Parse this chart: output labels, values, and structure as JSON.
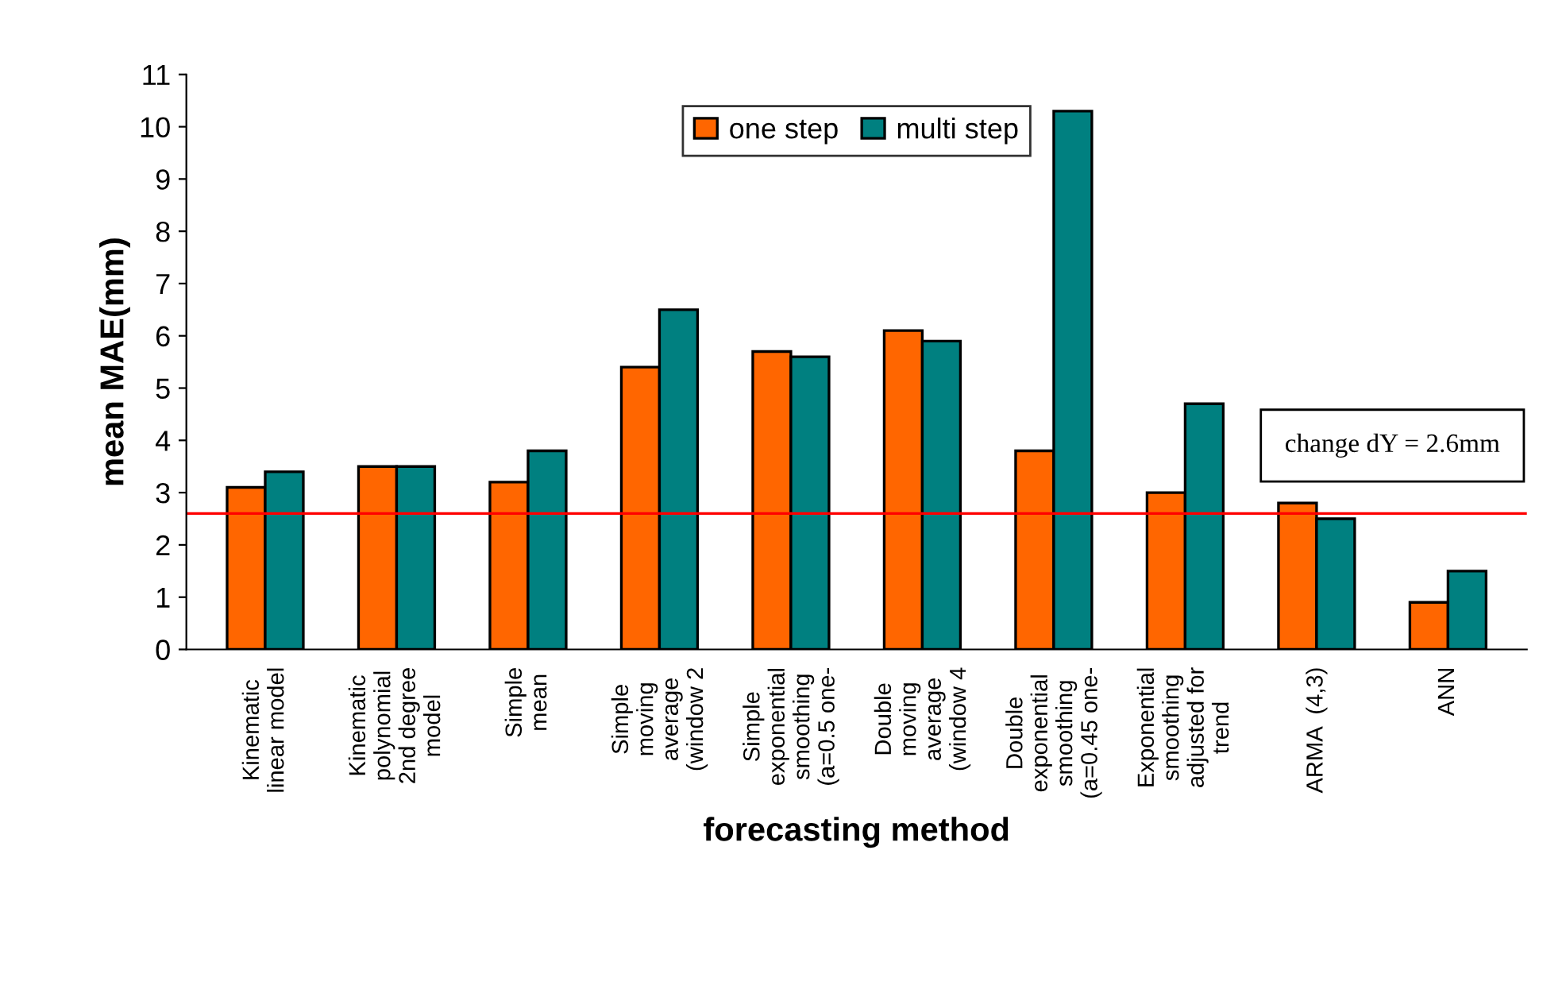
{
  "chart_data": {
    "type": "bar",
    "xlabel": "forecasting method",
    "ylabel": "mean MAE(mm)",
    "categories": [
      "Kinematic\nlinear model",
      "Kinematic\npolynomial\n2nd degree\nmodel",
      "Simple\nmean",
      "Simple\nmoving\naverage\n(window 2",
      "Simple\nexponential\nsmoothing\n(a=0.5 one-",
      "Double\nmoving\naverage\n(window 4",
      "Double\nexponential\nsmoothing\n(a=0.45 one-",
      "Exponential\nsmoothing\nadjusted for\ntrend",
      "ARMA  (4,3)",
      "ANN"
    ],
    "series": [
      {
        "name": "one step",
        "color": "#ff6600",
        "values": [
          3.1,
          3.5,
          3.2,
          5.4,
          5.7,
          6.1,
          3.8,
          3.0,
          2.8,
          0.9
        ]
      },
      {
        "name": "multi step",
        "color": "#008080",
        "values": [
          3.4,
          3.5,
          3.8,
          6.5,
          5.6,
          5.9,
          10.3,
          4.7,
          2.5,
          1.5
        ]
      }
    ],
    "ylim": [
      0,
      11
    ],
    "yticks": [
      0,
      1,
      2,
      3,
      4,
      5,
      6,
      7,
      8,
      9,
      10,
      11
    ],
    "ref_lines": [
      {
        "axis": "y",
        "value": 2.6,
        "label": "change dY = 2.6mm",
        "color": "#ff0000",
        "line_style": "solid"
      }
    ],
    "grid": false,
    "legend": "top"
  }
}
